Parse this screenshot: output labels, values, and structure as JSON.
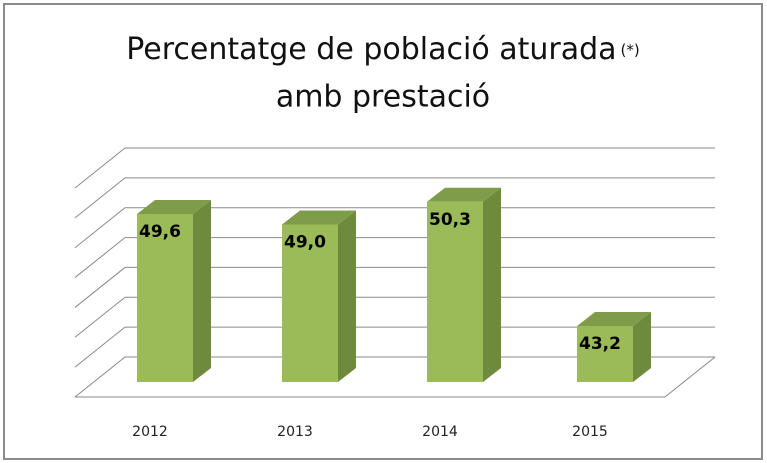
{
  "chart_data": {
    "type": "bar3d",
    "title": [
      "Percentatge de població aturada",
      "amb prestació"
    ],
    "title_note": "(*)",
    "categories": [
      "2012",
      "2013",
      "2014",
      "2015"
    ],
    "values": [
      49.6,
      49.0,
      50.3,
      43.2
    ],
    "value_labels": [
      "49,6",
      "49,0",
      "50,3",
      "43,2"
    ],
    "color": "#9bbb59",
    "ylim": [
      40,
      54
    ],
    "yticks": [
      40,
      42,
      44,
      46,
      48,
      50,
      52,
      54
    ],
    "grid": true
  }
}
